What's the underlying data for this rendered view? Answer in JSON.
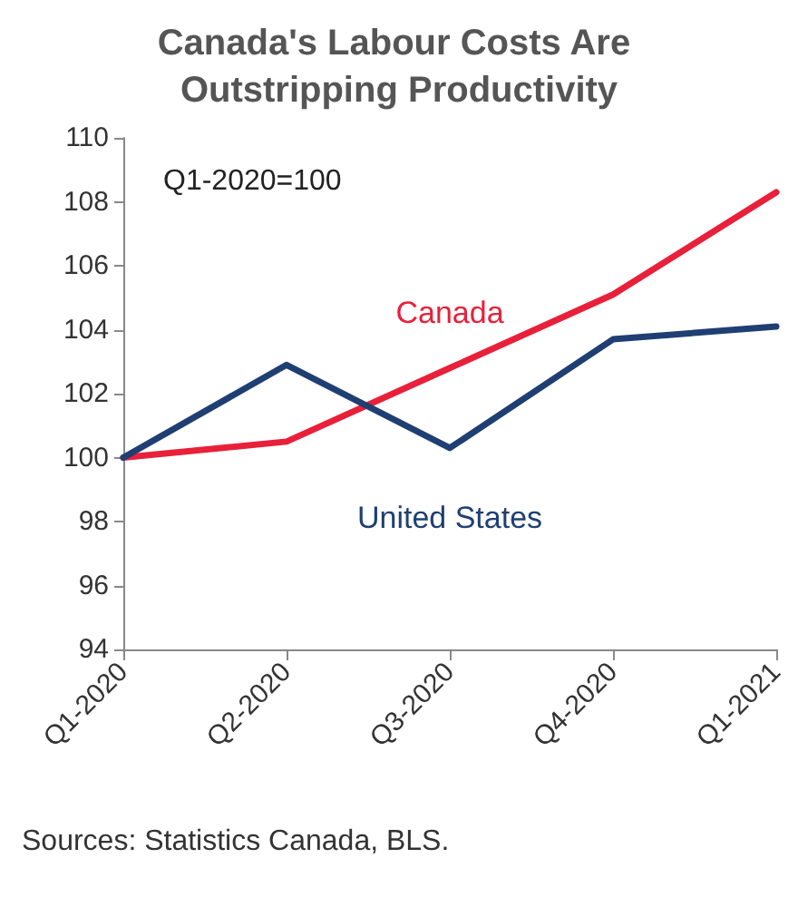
{
  "chart_data": {
    "type": "line",
    "title": "Canada's Labour Costs Are Outstripping Productivity",
    "categories": [
      "Q1-2020",
      "Q2-2020",
      "Q3-2020",
      "Q4-2020",
      "Q1-2021"
    ],
    "series": [
      {
        "name": "Canada",
        "color": "#e8203a",
        "values": [
          100,
          100.5,
          102.8,
          105.1,
          108.3
        ]
      },
      {
        "name": "United States",
        "color": "#1f3f73",
        "values": [
          100,
          102.9,
          100.3,
          103.7,
          104.1
        ]
      }
    ],
    "ylim": [
      94,
      110
    ],
    "yticks": [
      94,
      96,
      98,
      100,
      102,
      104,
      106,
      108,
      110
    ],
    "grid": false,
    "legend": false,
    "marker": "none",
    "line_style": "solid",
    "annotations": [
      "Q1-2020=100",
      "Sources: Statistics Canada, BLS."
    ]
  }
}
